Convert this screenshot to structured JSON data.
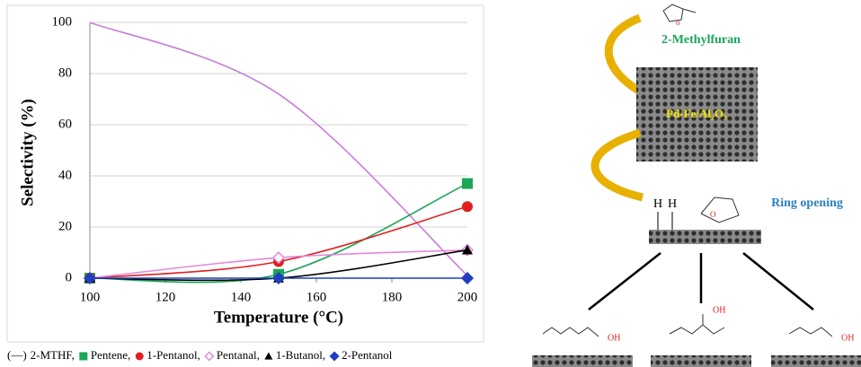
{
  "chart_data": {
    "type": "line",
    "x": [
      100,
      150,
      200
    ],
    "xlim": [
      100,
      200
    ],
    "xticks": [
      100,
      120,
      140,
      160,
      180,
      200
    ],
    "ylim": [
      0,
      100
    ],
    "yticks": [
      0,
      20,
      40,
      60,
      80,
      100
    ],
    "xlabel": "Temperature (°C)",
    "ylabel": "Selectivity  (%)",
    "grid": true,
    "legend_prefix": "(—)",
    "series": [
      {
        "name": "2-MTHF,",
        "color": "#c77ddb",
        "marker": "none",
        "values": [
          100,
          72,
          1
        ]
      },
      {
        "name": "Pentene,",
        "color": "#1aa557",
        "marker": "square",
        "values": [
          0,
          1.5,
          37
        ]
      },
      {
        "name": "1-Pentanol,",
        "color": "#e02020",
        "marker": "circle",
        "values": [
          0,
          6.5,
          28
        ]
      },
      {
        "name": "Pentanal,",
        "color": "#e08ad8",
        "marker": "diamond-open",
        "values": [
          0,
          8,
          11
        ]
      },
      {
        "name": "1-Butanol,",
        "color": "#000000",
        "marker": "triangle",
        "values": [
          0,
          0,
          11
        ]
      },
      {
        "name": "2-Pentanol",
        "color": "#1f3fbf",
        "marker": "diamond",
        "values": [
          0,
          0,
          0
        ]
      }
    ]
  },
  "diagram": {
    "reactant_label": "2-Methylfuran",
    "catalyst_label": "Pd-Fe/Al₂O₃",
    "step_label": "Ring opening",
    "surface_atoms": [
      "H",
      "H",
      "O"
    ],
    "products": [
      "OH",
      "OH",
      "OH"
    ]
  }
}
